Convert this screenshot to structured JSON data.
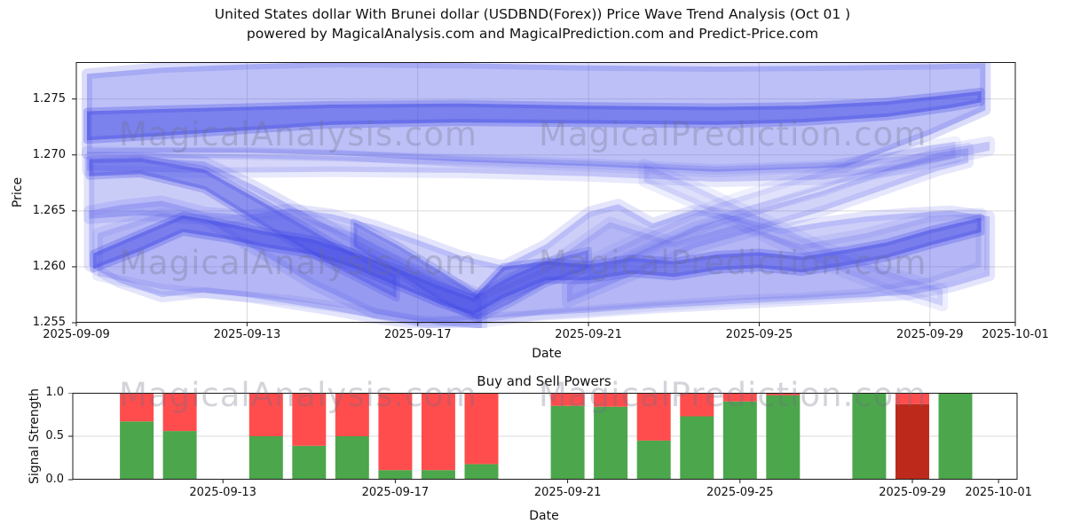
{
  "title": {
    "line1": "United States dollar With Brunei dollar (USDBND(Forex)) Price Wave Trend Analysis (Oct 01 )",
    "line2": "powered by MagicalAnalysis.com and MagicalPrediction.com and Predict-Price.com"
  },
  "watermarks": {
    "analysis": "MagicalAnalysis.com",
    "prediction": "MagicalPrediction.com"
  },
  "chart_data": [
    {
      "type": "area",
      "name": "price_wave_trend",
      "ylabel": "Price",
      "xlabel": "Date",
      "ylim": [
        1.255,
        1.2783
      ],
      "yticks": [
        1.255,
        1.26,
        1.265,
        1.27,
        1.275
      ],
      "ytick_labels": [
        "1.255",
        "1.260",
        "1.265",
        "1.270",
        "1.275"
      ],
      "xtick_labels": [
        "2025-09-09",
        "2025-09-13",
        "2025-09-17",
        "2025-09-21",
        "2025-09-25",
        "2025-09-29",
        "2025-10-01"
      ],
      "xtick_days": [
        0,
        4,
        8,
        12,
        16,
        20,
        22
      ],
      "xlim_days": [
        0,
        22
      ],
      "grid": true,
      "colors": {
        "light": "#5b61ea",
        "dark": "#3f46e4"
      },
      "bands": [
        {
          "name": "upper-envelope",
          "dark": false,
          "opacity": 0.4,
          "d": [
            0.25,
            2,
            4,
            6,
            9,
            12,
            15,
            18,
            20,
            21.3
          ],
          "top": [
            1.27725,
            1.2778,
            1.2781,
            1.2783,
            1.2782,
            1.278,
            1.2779,
            1.278,
            1.2781,
            1.2782
          ],
          "bottom": [
            1.2701,
            1.2702,
            1.2702,
            1.27,
            1.2694,
            1.269,
            1.2685,
            1.2689,
            1.2718,
            1.274
          ]
        },
        {
          "name": "upper-core",
          "dark": true,
          "opacity": 0.52,
          "d": [
            0.25,
            2,
            4,
            6,
            9,
            12,
            15,
            17,
            19,
            20.5,
            21.2
          ],
          "top": [
            1.2739,
            1.2741,
            1.2743,
            1.2745,
            1.2746,
            1.2744,
            1.2743,
            1.2744,
            1.2748,
            1.2754,
            1.2757
          ],
          "bottom": [
            1.2713,
            1.2717,
            1.2722,
            1.2727,
            1.2729,
            1.2728,
            1.2727,
            1.2729,
            1.2734,
            1.2742,
            1.2747
          ]
        },
        {
          "name": "upper-sub",
          "dark": false,
          "opacity": 0.26,
          "d": [
            0.25,
            3,
            6,
            9,
            12,
            15,
            17.5,
            19.5,
            20.8,
            21.4
          ],
          "top": [
            1.2703,
            1.2701,
            1.2699,
            1.2696,
            1.2692,
            1.2687,
            1.269,
            1.27,
            1.2708,
            1.2712
          ],
          "bottom": [
            1.2686,
            1.2684,
            1.2685,
            1.2684,
            1.2681,
            1.2676,
            1.2678,
            1.2688,
            1.2699,
            1.2704
          ]
        },
        {
          "name": "left-shelf",
          "dark": false,
          "opacity": 0.32,
          "d": [
            0.3,
            1.5,
            3,
            4.2,
            5.5,
            7,
            8.5,
            9.5
          ],
          "top": [
            1.2697,
            1.2698,
            1.2694,
            1.2672,
            1.2645,
            1.2615,
            1.2588,
            1.2572
          ],
          "bottom": [
            1.2643,
            1.2646,
            1.2642,
            1.2615,
            1.2585,
            1.2558,
            1.2548,
            1.2545
          ]
        },
        {
          "name": "left-shelf-core",
          "dark": true,
          "opacity": 0.45,
          "d": [
            0.3,
            1.5,
            3,
            4.5,
            6,
            7.5
          ],
          "top": [
            1.2696,
            1.2697,
            1.2687,
            1.2655,
            1.2622,
            1.2592
          ],
          "bottom": [
            1.2681,
            1.2683,
            1.2669,
            1.2634,
            1.2601,
            1.2572
          ]
        },
        {
          "name": "lower-mass",
          "dark": false,
          "opacity": 0.3,
          "d": [
            0.3,
            1,
            2,
            3,
            4,
            5,
            6,
            7,
            8,
            9,
            10,
            11,
            12,
            12.7,
            13.5,
            14.5,
            15.5,
            16.5,
            17.5,
            18.5,
            19.5,
            20.5,
            21.4
          ],
          "top": [
            1.265,
            1.2655,
            1.2659,
            1.2649,
            1.2646,
            1.2652,
            1.2647,
            1.2637,
            1.2624,
            1.261,
            1.2601,
            1.262,
            1.2649,
            1.2656,
            1.2639,
            1.2651,
            1.2645,
            1.2634,
            1.264,
            1.2645,
            1.2648,
            1.265,
            1.2645
          ],
          "bottom": [
            1.2601,
            1.2586,
            1.2573,
            1.2577,
            1.2573,
            1.2567,
            1.2561,
            1.2554,
            1.2549,
            1.2552,
            1.2555,
            1.2557,
            1.2559,
            1.2561,
            1.2563,
            1.2565,
            1.2567,
            1.2569,
            1.2571,
            1.2573,
            1.2575,
            1.2582,
            1.2592
          ]
        },
        {
          "name": "lower-secondary",
          "dark": false,
          "opacity": 0.22,
          "d": [
            0.5,
            2,
            3.5,
            5,
            6.5,
            8,
            9.5,
            11,
            12.5,
            14,
            15.5,
            17,
            18.5,
            20,
            21.2
          ],
          "top": [
            1.263,
            1.2648,
            1.264,
            1.2648,
            1.263,
            1.26,
            1.2575,
            1.26,
            1.264,
            1.2622,
            1.2638,
            1.262,
            1.263,
            1.2645,
            1.2648
          ],
          "bottom": [
            1.2592,
            1.258,
            1.2575,
            1.257,
            1.2562,
            1.2552,
            1.255,
            1.2558,
            1.2562,
            1.2566,
            1.257,
            1.2572,
            1.2576,
            1.2586,
            1.26
          ]
        },
        {
          "name": "lower-core",
          "dark": true,
          "opacity": 0.5,
          "d": [
            0.4,
            1.5,
            2.5,
            3.5,
            4.5,
            5.5,
            6.5,
            7.5,
            8.5,
            9.3,
            10,
            11,
            12,
            13,
            14,
            15,
            16,
            17,
            18,
            19,
            20,
            21.2
          ],
          "top": [
            1.2612,
            1.263,
            1.2646,
            1.2639,
            1.2631,
            1.2625,
            1.2613,
            1.2599,
            1.2583,
            1.2572,
            1.26,
            1.2605,
            1.2602,
            1.2608,
            1.2605,
            1.2611,
            1.2613,
            1.2609,
            1.2615,
            1.2622,
            1.2633,
            1.2644
          ],
          "bottom": [
            1.2598,
            1.2614,
            1.2631,
            1.2625,
            1.2617,
            1.2611,
            1.2599,
            1.2583,
            1.2567,
            1.2557,
            1.2572,
            1.2588,
            1.2588,
            1.2594,
            1.2591,
            1.2597,
            1.2599,
            1.2595,
            1.2601,
            1.2608,
            1.2619,
            1.2631
          ]
        },
        {
          "name": "v-dip-core",
          "dark": true,
          "opacity": 0.38,
          "d": [
            6.5,
            7.5,
            8.5,
            9.4,
            10.2,
            11,
            12
          ],
          "top": [
            1.264,
            1.262,
            1.2597,
            1.2575,
            1.2592,
            1.2605,
            1.2615
          ],
          "bottom": [
            1.2618,
            1.2595,
            1.257,
            1.2553,
            1.2568,
            1.2585,
            1.2598
          ]
        },
        {
          "name": "rising-diagonal",
          "dark": false,
          "opacity": 0.28,
          "d": [
            11.5,
            13,
            14.5,
            16,
            17.5,
            19,
            20.2,
            20.9
          ],
          "top": [
            1.2585,
            1.261,
            1.2636,
            1.2652,
            1.2668,
            1.2688,
            1.2702,
            1.2706
          ],
          "bottom": [
            1.2568,
            1.2592,
            1.2617,
            1.2633,
            1.265,
            1.267,
            1.2686,
            1.2693
          ]
        },
        {
          "name": "rising-diagonal-2",
          "dark": false,
          "opacity": 0.18,
          "d": [
            12,
            13.5,
            15,
            16.5,
            18,
            19.5,
            20.6
          ],
          "top": [
            1.2605,
            1.2632,
            1.2656,
            1.2674,
            1.2692,
            1.2706,
            1.2712
          ],
          "bottom": [
            1.259,
            1.2616,
            1.264,
            1.2658,
            1.2676,
            1.269,
            1.2697
          ]
        },
        {
          "name": "descending-cross",
          "dark": false,
          "opacity": 0.2,
          "d": [
            13.3,
            14.5,
            16,
            17.5,
            19,
            20.3
          ],
          "top": [
            1.2692,
            1.2672,
            1.2645,
            1.2618,
            1.2596,
            1.258
          ],
          "bottom": [
            1.2676,
            1.2656,
            1.2629,
            1.2602,
            1.258,
            1.2565
          ]
        }
      ]
    },
    {
      "type": "bar",
      "name": "buy_sell_powers",
      "title": "Buy and Sell Powers",
      "ylabel": "Signal Strength",
      "xlabel": "Date",
      "ylim": [
        0,
        1
      ],
      "yticks": [
        0.0,
        0.5,
        1.0
      ],
      "ytick_labels": [
        "0.0",
        "0.5",
        "1.0"
      ],
      "xtick_labels": [
        "2025-09-13",
        "2025-09-17",
        "2025-09-21",
        "2025-09-25",
        "2025-09-29",
        "2025-10-01"
      ],
      "xtick_days": [
        4,
        8,
        12,
        16,
        20,
        22
      ],
      "grid": true,
      "colors": {
        "green": "#4ca64c",
        "red": "#ff4d4d",
        "dark_red": "#bd2a1c"
      },
      "bars": [
        {
          "label": "2025-09-11",
          "day": 2,
          "green": 0.67,
          "red": 0.33,
          "dark_red": 0
        },
        {
          "label": "2025-09-12",
          "day": 3,
          "green": 0.56,
          "red": 0.44,
          "dark_red": 0
        },
        {
          "label": "2025-09-14",
          "day": 5,
          "green": 0.5,
          "red": 0.5,
          "dark_red": 0
        },
        {
          "label": "2025-09-15",
          "day": 6,
          "green": 0.39,
          "red": 0.61,
          "dark_red": 0
        },
        {
          "label": "2025-09-16",
          "day": 7,
          "green": 0.5,
          "red": 0.5,
          "dark_red": 0
        },
        {
          "label": "2025-09-17",
          "day": 8,
          "green": 0.11,
          "red": 0.89,
          "dark_red": 0
        },
        {
          "label": "2025-09-18",
          "day": 9,
          "green": 0.11,
          "red": 0.89,
          "dark_red": 0
        },
        {
          "label": "2025-09-19",
          "day": 10,
          "green": 0.18,
          "red": 0.82,
          "dark_red": 0
        },
        {
          "label": "2025-09-21",
          "day": 12,
          "green": 0.85,
          "red": 0.15,
          "dark_red": 0
        },
        {
          "label": "2025-09-22",
          "day": 13,
          "green": 0.84,
          "red": 0.16,
          "dark_red": 0
        },
        {
          "label": "2025-09-23",
          "day": 14,
          "green": 0.45,
          "red": 0.55,
          "dark_red": 0
        },
        {
          "label": "2025-09-24",
          "day": 15,
          "green": 0.73,
          "red": 0.27,
          "dark_red": 0
        },
        {
          "label": "2025-09-25",
          "day": 16,
          "green": 0.9,
          "red": 0.1,
          "dark_red": 0
        },
        {
          "label": "2025-09-26",
          "day": 17,
          "green": 0.97,
          "red": 0.03,
          "dark_red": 0
        },
        {
          "label": "2025-09-28",
          "day": 19,
          "green": 1.0,
          "red": 0,
          "dark_red": 0
        },
        {
          "label": "2025-09-29",
          "day": 20,
          "green": 0,
          "red": 0.13,
          "dark_red": 0.87
        },
        {
          "label": "2025-09-30",
          "day": 21,
          "green": 1.0,
          "red": 0,
          "dark_red": 0
        }
      ]
    }
  ]
}
